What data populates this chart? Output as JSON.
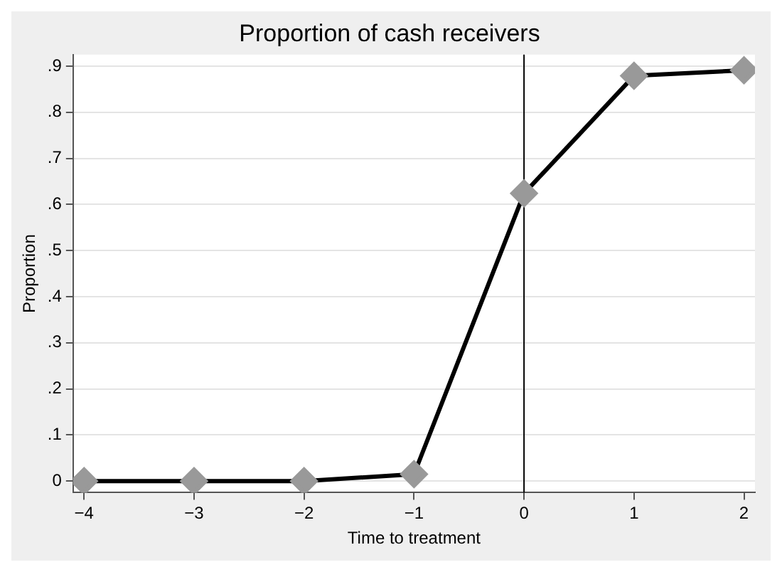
{
  "chart_data": {
    "type": "line",
    "title": "Proportion of cash receivers",
    "xlabel": "Time to treatment",
    "ylabel": "Proportion",
    "x": [
      -4,
      -3,
      -2,
      -1,
      0,
      1,
      2
    ],
    "series": [
      {
        "color": "#000000",
        "values": [
          0,
          0,
          0,
          0.015,
          0.624,
          0.879,
          0.891
        ]
      }
    ],
    "marker": "diamond",
    "line_style": "solid",
    "grid": "y",
    "legend": false,
    "xlim": [
      -4.1,
      2.1
    ],
    "xticks": [
      {
        "value": -4,
        "label": "−4"
      },
      {
        "value": -3,
        "label": "−3"
      },
      {
        "value": -2,
        "label": "−2"
      },
      {
        "value": -1,
        "label": "−1"
      },
      0,
      1,
      2
    ],
    "ylim": [
      -0.025,
      0.925
    ],
    "yticks": [
      0,
      {
        "value": 0.1,
        "label": ".1"
      },
      {
        "value": 0.2,
        "label": ".2"
      },
      {
        "value": 0.3,
        "label": ".3"
      },
      {
        "value": 0.4,
        "label": ".4"
      },
      {
        "value": 0.5,
        "label": ".5"
      },
      {
        "value": 0.6,
        "label": ".6"
      },
      {
        "value": 0.7,
        "label": ".7"
      },
      {
        "value": 0.8,
        "label": ".8"
      },
      {
        "value": 0.9,
        "label": ".9"
      }
    ],
    "ref_lines": [
      {
        "axis": "x",
        "value": 0,
        "color": "#000000"
      }
    ]
  }
}
